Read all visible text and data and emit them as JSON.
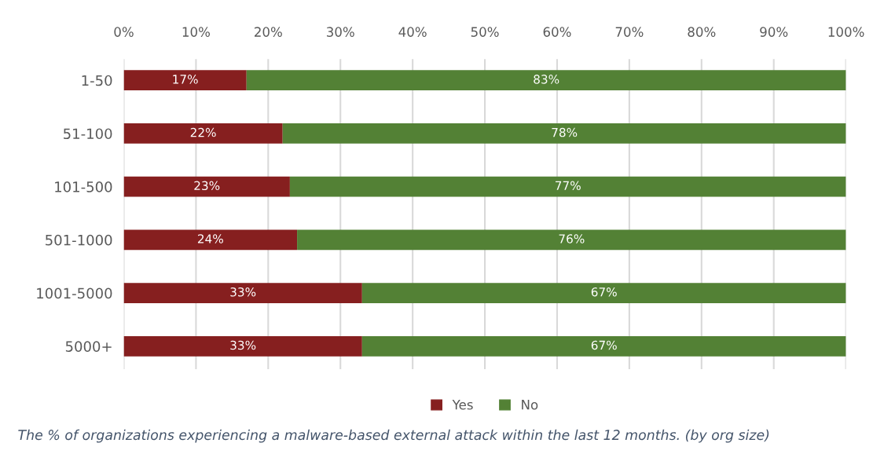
{
  "chart_data": {
    "type": "bar",
    "orientation": "horizontal",
    "stacked": true,
    "categories": [
      "1-50",
      "51-100",
      "101-500",
      "501-1000",
      "1001-5000",
      "5000+"
    ],
    "series": [
      {
        "name": "Yes",
        "color": "#861f1f",
        "values": [
          17,
          22,
          23,
          24,
          33,
          33
        ]
      },
      {
        "name": "No",
        "color": "#538135",
        "values": [
          83,
          78,
          77,
          76,
          67,
          67
        ]
      }
    ],
    "xlim": [
      0,
      100
    ],
    "xticks": [
      {
        "value": 0,
        "label": "0%"
      },
      {
        "value": 10,
        "label": "10%"
      },
      {
        "value": 20,
        "label": "20%"
      },
      {
        "value": 30,
        "label": "30%"
      },
      {
        "value": 40,
        "label": "40%"
      },
      {
        "value": 50,
        "label": "50%"
      },
      {
        "value": 60,
        "label": "60%"
      },
      {
        "value": 70,
        "label": "70%"
      },
      {
        "value": 80,
        "label": "80%"
      },
      {
        "value": 90,
        "label": "90%"
      },
      {
        "value": 100,
        "label": "100%"
      }
    ],
    "value_labels": [
      [
        "17%",
        "22%",
        "23%",
        "24%",
        "33%",
        "33%"
      ],
      [
        "83%",
        "78%",
        "77%",
        "76%",
        "67%",
        "67%"
      ]
    ],
    "grid": "x",
    "legend": "bottom",
    "annotations": [
      "The % of organizations experiencing a malware-based external attack within the last 12 months. (by org size)"
    ]
  }
}
